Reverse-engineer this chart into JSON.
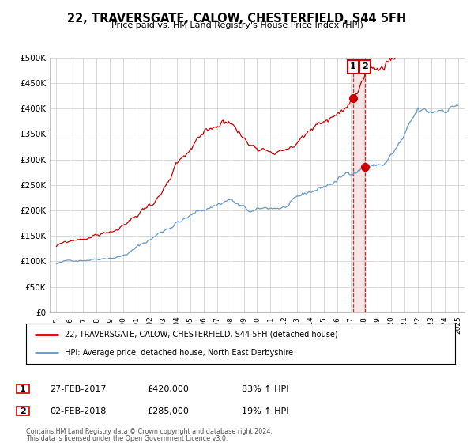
{
  "title": "22, TRAVERSGATE, CALOW, CHESTERFIELD, S44 5FH",
  "subtitle": "Price paid vs. HM Land Registry's House Price Index (HPI)",
  "legend_label1": "22, TRAVERSGATE, CALOW, CHESTERFIELD, S44 5FH (detached house)",
  "legend_label2": "HPI: Average price, detached house, North East Derbyshire",
  "line1_color": "#cc0000",
  "line2_color": "#6699cc",
  "marker_color": "#cc0000",
  "point1_date_x": 2017.15,
  "point1_y": 420000,
  "point2_date_x": 2018.08,
  "point2_y": 285000,
  "vline_color": "#cc0000",
  "annotation_box_color": "#cc0000",
  "table_row1": [
    "1",
    "27-FEB-2017",
    "£420,000",
    "83% ↑ HPI"
  ],
  "table_row2": [
    "2",
    "02-FEB-2018",
    "£285,000",
    "19% ↑ HPI"
  ],
  "footer1": "Contains HM Land Registry data © Crown copyright and database right 2024.",
  "footer2": "This data is licensed under the Open Government Licence v3.0.",
  "ylim": [
    0,
    500000
  ],
  "yticks": [
    0,
    50000,
    100000,
    150000,
    200000,
    250000,
    300000,
    350000,
    400000,
    450000,
    500000
  ],
  "ytick_labels": [
    "£0",
    "£50K",
    "£100K",
    "£150K",
    "£200K",
    "£250K",
    "£300K",
    "£350K",
    "£400K",
    "£450K",
    "£500K"
  ],
  "xlim": [
    1994.5,
    2025.5
  ],
  "xticks": [
    1995,
    1996,
    1997,
    1998,
    1999,
    2000,
    2001,
    2002,
    2003,
    2004,
    2005,
    2006,
    2007,
    2008,
    2009,
    2010,
    2011,
    2012,
    2013,
    2014,
    2015,
    2016,
    2017,
    2018,
    2019,
    2020,
    2021,
    2022,
    2023,
    2024,
    2025
  ],
  "background_color": "#ffffff",
  "grid_color": "#cccccc",
  "start_year": 1995,
  "end_year": 2025,
  "points_per_year": 12
}
